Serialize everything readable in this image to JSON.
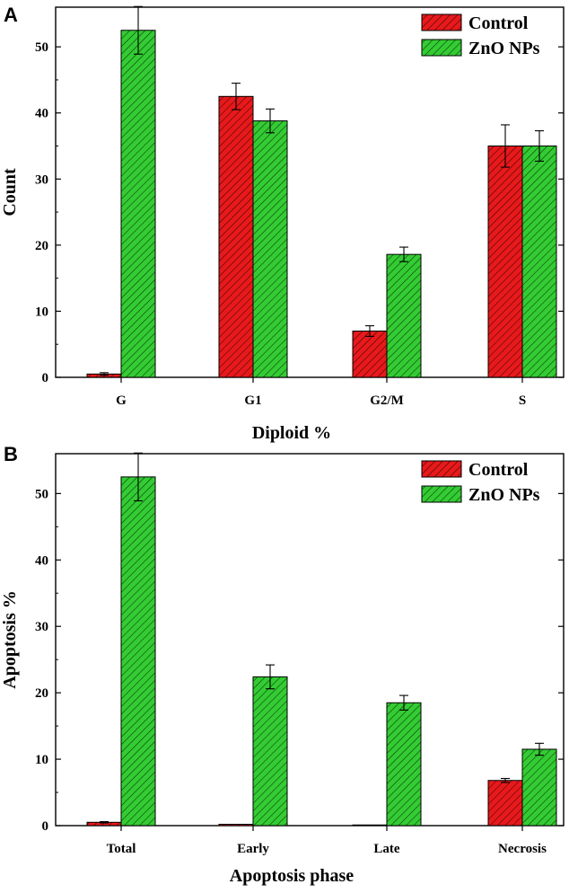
{
  "colors": {
    "control": "#e8191b",
    "znonps": "#33cc33",
    "hatch": "#000000",
    "axis": "#000000"
  },
  "chart_data": [
    {
      "type": "bar",
      "panel_label": "A",
      "title": "",
      "xlabel": "Diploid %",
      "ylabel": "Count",
      "categories": [
        "G",
        "G1",
        "G2/M",
        "S"
      ],
      "ylim": [
        0,
        56
      ],
      "yticks": [
        0,
        10,
        20,
        30,
        40,
        50
      ],
      "legend_position": "top-right",
      "series": [
        {
          "name": "Control",
          "color_key": "control",
          "values": [
            0.5,
            42.5,
            7.0,
            35.0
          ],
          "errors": [
            0.2,
            2.0,
            0.8,
            3.2
          ]
        },
        {
          "name": "ZnO NPs",
          "color_key": "znonps",
          "values": [
            52.5,
            38.8,
            18.6,
            35.0
          ],
          "errors": [
            3.6,
            1.8,
            1.1,
            2.3
          ]
        }
      ]
    },
    {
      "type": "bar",
      "panel_label": "B",
      "title": "",
      "xlabel": "Apoptosis phase",
      "ylabel": "Apoptosis %",
      "categories": [
        "Total",
        "Early",
        "Late",
        "Necrosis"
      ],
      "ylim": [
        0,
        56
      ],
      "yticks": [
        0,
        10,
        20,
        30,
        40,
        50
      ],
      "legend_position": "top-right",
      "series": [
        {
          "name": "Control",
          "color_key": "control",
          "values": [
            0.5,
            0.2,
            0.1,
            6.8
          ],
          "errors": [
            0.1,
            0.0,
            0.0,
            0.3
          ]
        },
        {
          "name": "ZnO NPs",
          "color_key": "znonps",
          "values": [
            52.5,
            22.4,
            18.5,
            11.5
          ],
          "errors": [
            3.6,
            1.8,
            1.1,
            0.9
          ]
        }
      ]
    }
  ]
}
